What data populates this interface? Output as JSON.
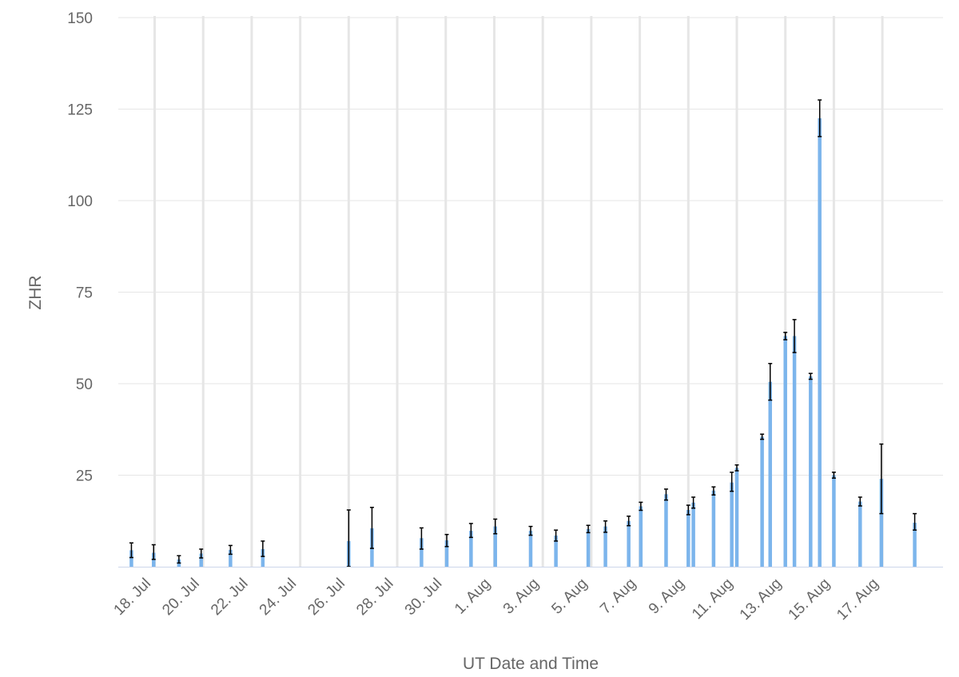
{
  "colors": {
    "bar": "#7cb5ec",
    "error_bar": "#000000",
    "grid": "#e6e6e6",
    "axis_line": "#ccd6eb",
    "text": "#666666"
  },
  "chart_data": {
    "type": "bar",
    "xlabel": "UT Date and Time",
    "ylabel": "ZHR",
    "xlim": [
      "2021-07-16T12:00",
      "2021-08-19T12:00"
    ],
    "ylim": [
      0,
      150
    ],
    "y_ticks": [
      25,
      50,
      75,
      100,
      125,
      150
    ],
    "x_ticks": [
      {
        "date": "2021-07-18",
        "label": "18. Jul"
      },
      {
        "date": "2021-07-20",
        "label": "20. Jul"
      },
      {
        "date": "2021-07-22",
        "label": "22. Jul"
      },
      {
        "date": "2021-07-24",
        "label": "24. Jul"
      },
      {
        "date": "2021-07-26",
        "label": "26. Jul"
      },
      {
        "date": "2021-07-28",
        "label": "28. Jul"
      },
      {
        "date": "2021-07-30",
        "label": "30. Jul"
      },
      {
        "date": "2021-08-01",
        "label": "1. Aug"
      },
      {
        "date": "2021-08-03",
        "label": "3. Aug"
      },
      {
        "date": "2021-08-05",
        "label": "5. Aug"
      },
      {
        "date": "2021-08-07",
        "label": "7. Aug"
      },
      {
        "date": "2021-08-09",
        "label": "9. Aug"
      },
      {
        "date": "2021-08-11",
        "label": "11. Aug"
      },
      {
        "date": "2021-08-13",
        "label": "13. Aug"
      },
      {
        "date": "2021-08-15",
        "label": "15. Aug"
      },
      {
        "date": "2021-08-17",
        "label": "17. Aug"
      }
    ],
    "grid": true,
    "legend": "none",
    "series": [
      {
        "points": [
          {
            "x": "2021-07-17T01:00",
            "y": 4.5,
            "err": [
              2.5,
              6.5
            ]
          },
          {
            "x": "2021-07-17T23:00",
            "y": 3.8,
            "err": [
              2.0,
              6.0
            ]
          },
          {
            "x": "2021-07-19T00:00",
            "y": 2.0,
            "err": [
              1.0,
              3.0
            ]
          },
          {
            "x": "2021-07-19T22:00",
            "y": 3.6,
            "err": [
              2.4,
              4.8
            ]
          },
          {
            "x": "2021-07-21T03:00",
            "y": 4.6,
            "err": [
              3.4,
              5.8
            ]
          },
          {
            "x": "2021-07-22T11:00",
            "y": 4.8,
            "err": [
              2.8,
              7.0
            ]
          },
          {
            "x": "2021-07-26T00:00",
            "y": 7.0,
            "err": [
              0.0,
              15.5
            ]
          },
          {
            "x": "2021-07-26T23:00",
            "y": 10.5,
            "err": [
              5.0,
              16.2
            ]
          },
          {
            "x": "2021-07-29T00:00",
            "y": 7.8,
            "err": [
              4.8,
              10.6
            ]
          },
          {
            "x": "2021-07-30T01:00",
            "y": 7.2,
            "err": [
              5.5,
              8.8
            ]
          },
          {
            "x": "2021-07-31T01:00",
            "y": 9.8,
            "err": [
              8.0,
              11.8
            ]
          },
          {
            "x": "2021-08-01T01:00",
            "y": 11.0,
            "err": [
              9.0,
              13.0
            ]
          },
          {
            "x": "2021-08-02T12:00",
            "y": 9.8,
            "err": [
              8.6,
              11.0
            ]
          },
          {
            "x": "2021-08-03T13:00",
            "y": 8.5,
            "err": [
              7.0,
              10.0
            ]
          },
          {
            "x": "2021-08-04T21:00",
            "y": 10.3,
            "err": [
              9.3,
              11.3
            ]
          },
          {
            "x": "2021-08-05T14:00",
            "y": 11.0,
            "err": [
              9.4,
              12.5
            ]
          },
          {
            "x": "2021-08-06T13:00",
            "y": 12.5,
            "err": [
              11.2,
              13.8
            ]
          },
          {
            "x": "2021-08-07T01:00",
            "y": 16.5,
            "err": [
              15.4,
              17.6
            ]
          },
          {
            "x": "2021-08-08T02:00",
            "y": 19.8,
            "err": [
              18.2,
              21.2
            ]
          },
          {
            "x": "2021-08-09T00:00",
            "y": 15.5,
            "err": [
              14.2,
              16.8
            ]
          },
          {
            "x": "2021-08-09T05:00",
            "y": 17.5,
            "err": [
              16.0,
              19.0
            ]
          },
          {
            "x": "2021-08-10T01:00",
            "y": 20.8,
            "err": [
              19.6,
              21.8
            ]
          },
          {
            "x": "2021-08-10T19:00",
            "y": 23.0,
            "err": [
              20.6,
              25.8
            ]
          },
          {
            "x": "2021-08-11T00:00",
            "y": 27.0,
            "err": [
              26.2,
              27.8
            ]
          },
          {
            "x": "2021-08-12T01:00",
            "y": 35.5,
            "err": [
              34.8,
              36.2
            ]
          },
          {
            "x": "2021-08-12T09:00",
            "y": 50.5,
            "err": [
              45.5,
              55.5
            ]
          },
          {
            "x": "2021-08-13T00:00",
            "y": 63.0,
            "err": [
              62.0,
              64.0
            ]
          },
          {
            "x": "2021-08-13T09:00",
            "y": 63.0,
            "err": [
              58.5,
              67.5
            ]
          },
          {
            "x": "2021-08-14T01:00",
            "y": 52.0,
            "err": [
              51.2,
              52.8
            ]
          },
          {
            "x": "2021-08-14T10:00",
            "y": 122.5,
            "err": [
              117.5,
              127.5
            ]
          },
          {
            "x": "2021-08-15T00:00",
            "y": 25.0,
            "err": [
              24.2,
              25.8
            ]
          },
          {
            "x": "2021-08-16T02:00",
            "y": 17.8,
            "err": [
              16.6,
              19.0
            ]
          },
          {
            "x": "2021-08-16T23:00",
            "y": 24.0,
            "err": [
              14.5,
              33.5
            ]
          },
          {
            "x": "2021-08-18T08:00",
            "y": 12.0,
            "err": [
              10.0,
              14.5
            ]
          }
        ]
      }
    ]
  }
}
